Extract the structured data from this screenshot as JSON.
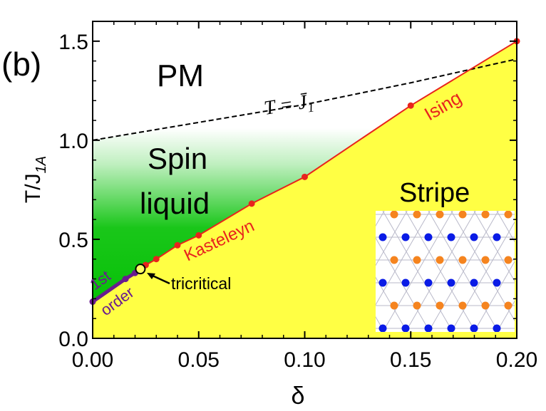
{
  "chart_data": {
    "type": "line",
    "panel_label": "(b)",
    "xlabel": "δ",
    "ylabel": "T/J",
    "ylabel_sub": "1A",
    "xlim": [
      0.0,
      0.2
    ],
    "ylim": [
      0.0,
      1.6
    ],
    "xticks": [
      0.0,
      0.05,
      0.1,
      0.15,
      0.2
    ],
    "xtick_labels": [
      "0.00",
      "0.05",
      "0.10",
      "0.15",
      "0.20"
    ],
    "yticks": [
      0.0,
      0.5,
      1.0,
      1.5
    ],
    "ytick_labels": [
      "0.0",
      "0.5",
      "1.0",
      "1.5"
    ],
    "series": [
      {
        "name": "Ising / Kasteleyn transition",
        "color": "#e8231d",
        "x": [
          0.0225,
          0.025,
          0.03,
          0.04,
          0.05,
          0.075,
          0.1,
          0.15,
          0.2
        ],
        "y": [
          0.35,
          0.37,
          0.4,
          0.47,
          0.52,
          0.68,
          0.815,
          1.175,
          1.5
        ]
      },
      {
        "name": "1st order transition",
        "color": "#6a1b8f",
        "x": [
          0.0,
          0.0155,
          0.02,
          0.0225
        ],
        "y": [
          0.185,
          0.3,
          0.33,
          0.35
        ]
      },
      {
        "name": "T = J1 crossover",
        "color": "#000000",
        "dashed": true,
        "x": [
          0.0,
          0.05,
          0.1,
          0.15,
          0.2
        ],
        "y": [
          1.0,
          1.09,
          1.18,
          1.29,
          1.41
        ]
      }
    ],
    "tricritical_point": {
      "x": 0.0225,
      "y": 0.35
    },
    "annotations": {
      "pm": "PM",
      "spin_liquid_1": "Spin",
      "spin_liquid_2": "liquid",
      "stripe": "Stripe",
      "ising": "Ising",
      "kasteleyn": "Kasteleyn",
      "first": "1st",
      "order": "order",
      "tricritical": "tricritical",
      "dashed_label": "T = J̄",
      "dashed_label_sub": "1"
    },
    "colors": {
      "spin_liquid": "#00c000",
      "stripe_phase": "#ffff44",
      "ising_line": "#e8231d",
      "first_order_line": "#6a1b8f",
      "stripe_orange": "#f5841f",
      "stripe_blue": "#0a1be6"
    },
    "inset": {
      "rows": [
        "orange",
        "blue",
        "orange",
        "blue",
        "orange",
        "blue"
      ]
    }
  }
}
